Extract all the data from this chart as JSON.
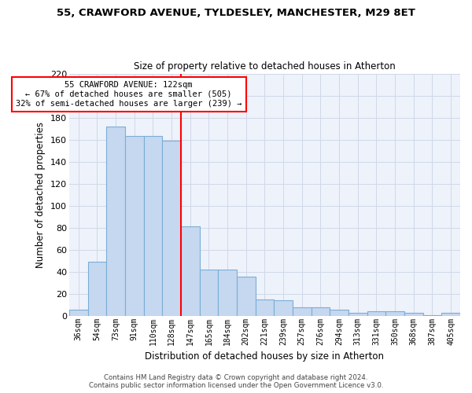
{
  "title1": "55, CRAWFORD AVENUE, TYLDESLEY, MANCHESTER, M29 8ET",
  "title2": "Size of property relative to detached houses in Atherton",
  "xlabel": "Distribution of detached houses by size in Atherton",
  "ylabel": "Number of detached properties",
  "categories": [
    "36sqm",
    "54sqm",
    "73sqm",
    "91sqm",
    "110sqm",
    "128sqm",
    "147sqm",
    "165sqm",
    "184sqm",
    "202sqm",
    "221sqm",
    "239sqm",
    "257sqm",
    "276sqm",
    "294sqm",
    "313sqm",
    "331sqm",
    "350sqm",
    "368sqm",
    "387sqm",
    "405sqm"
  ],
  "values": [
    6,
    49,
    172,
    163,
    163,
    159,
    81,
    42,
    42,
    36,
    15,
    14,
    8,
    8,
    6,
    3,
    4,
    4,
    3,
    1,
    3
  ],
  "bar_color": "#c5d8f0",
  "bar_edge_color": "#7aaed6",
  "grid_color": "#d0d8e8",
  "background_color": "#eef2fa",
  "vline_x": 5.5,
  "vline_color": "red",
  "annotation_line1": "55 CRAWFORD AVENUE: 122sqm",
  "annotation_line2": "← 67% of detached houses are smaller (505)",
  "annotation_line3": "32% of semi-detached houses are larger (239) →",
  "annotation_box_color": "white",
  "annotation_box_edge_color": "red",
  "ylim": [
    0,
    220
  ],
  "yticks": [
    0,
    20,
    40,
    60,
    80,
    100,
    120,
    140,
    160,
    180,
    200,
    220
  ],
  "footer1": "Contains HM Land Registry data © Crown copyright and database right 2024.",
  "footer2": "Contains public sector information licensed under the Open Government Licence v3.0."
}
